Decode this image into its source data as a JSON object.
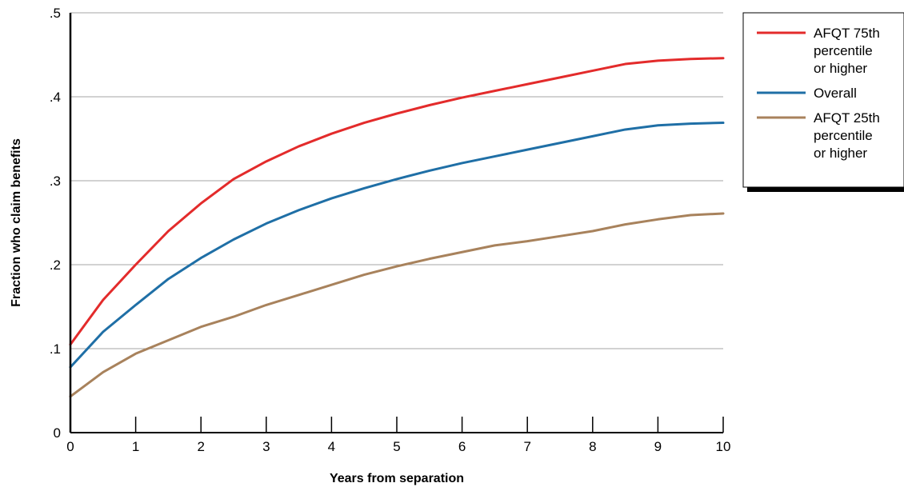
{
  "colors": {
    "high": "#e32b2b",
    "overall": "#1f6fa6",
    "low": "#a8825c",
    "grid": "#a6a6a6",
    "axis": "#000000"
  },
  "chart_data": {
    "type": "line",
    "title": "",
    "xlabel": "Years from separation",
    "ylabel": "Fraction who claim benefits",
    "xlim": [
      0,
      10
    ],
    "ylim": [
      0,
      0.5
    ],
    "x_ticks": [
      0,
      1,
      2,
      3,
      4,
      5,
      6,
      7,
      8,
      9,
      10
    ],
    "x_tick_labels": [
      "0",
      "1",
      "2",
      "3",
      "4",
      "5",
      "6",
      "7",
      "8",
      "9",
      "10"
    ],
    "y_ticks": [
      0,
      0.1,
      0.2,
      0.3,
      0.4,
      0.5
    ],
    "y_tick_labels": [
      "0",
      ".1",
      ".2",
      ".3",
      ".4",
      ".5"
    ],
    "grid": "horizontal",
    "legend_position": "top-right, outside plot",
    "x": [
      0,
      0.5,
      1,
      1.5,
      2,
      2.5,
      3,
      3.5,
      4,
      4.5,
      5,
      5.5,
      6,
      6.5,
      7,
      7.5,
      8,
      8.5,
      9,
      9.5,
      10
    ],
    "series": [
      {
        "name": "AFQT 75th percentile or higher",
        "legend_lines": [
          "AFQT 75th",
          "percentile",
          "or higher"
        ],
        "color": "#e32b2b",
        "values": [
          0.105,
          0.158,
          0.2,
          0.24,
          0.273,
          0.302,
          0.323,
          0.341,
          0.356,
          0.369,
          0.38,
          0.39,
          0.399,
          0.407,
          0.415,
          0.423,
          0.431,
          0.439,
          0.443,
          0.445,
          0.446
        ]
      },
      {
        "name": "Overall",
        "legend_lines": [
          "Overall"
        ],
        "color": "#1f6fa6",
        "values": [
          0.078,
          0.12,
          0.152,
          0.183,
          0.208,
          0.23,
          0.249,
          0.265,
          0.279,
          0.291,
          0.302,
          0.312,
          0.321,
          0.329,
          0.337,
          0.345,
          0.353,
          0.361,
          0.366,
          0.368,
          0.369
        ]
      },
      {
        "name": "AFQT 25th percentile or higher",
        "legend_lines": [
          "AFQT 25th",
          "percentile",
          "or higher"
        ],
        "color": "#a8825c",
        "values": [
          0.043,
          0.072,
          0.094,
          0.11,
          0.126,
          0.138,
          0.152,
          0.164,
          0.176,
          0.188,
          0.198,
          0.207,
          0.215,
          0.223,
          0.228,
          0.234,
          0.24,
          0.248,
          0.254,
          0.259,
          0.261
        ]
      }
    ]
  }
}
